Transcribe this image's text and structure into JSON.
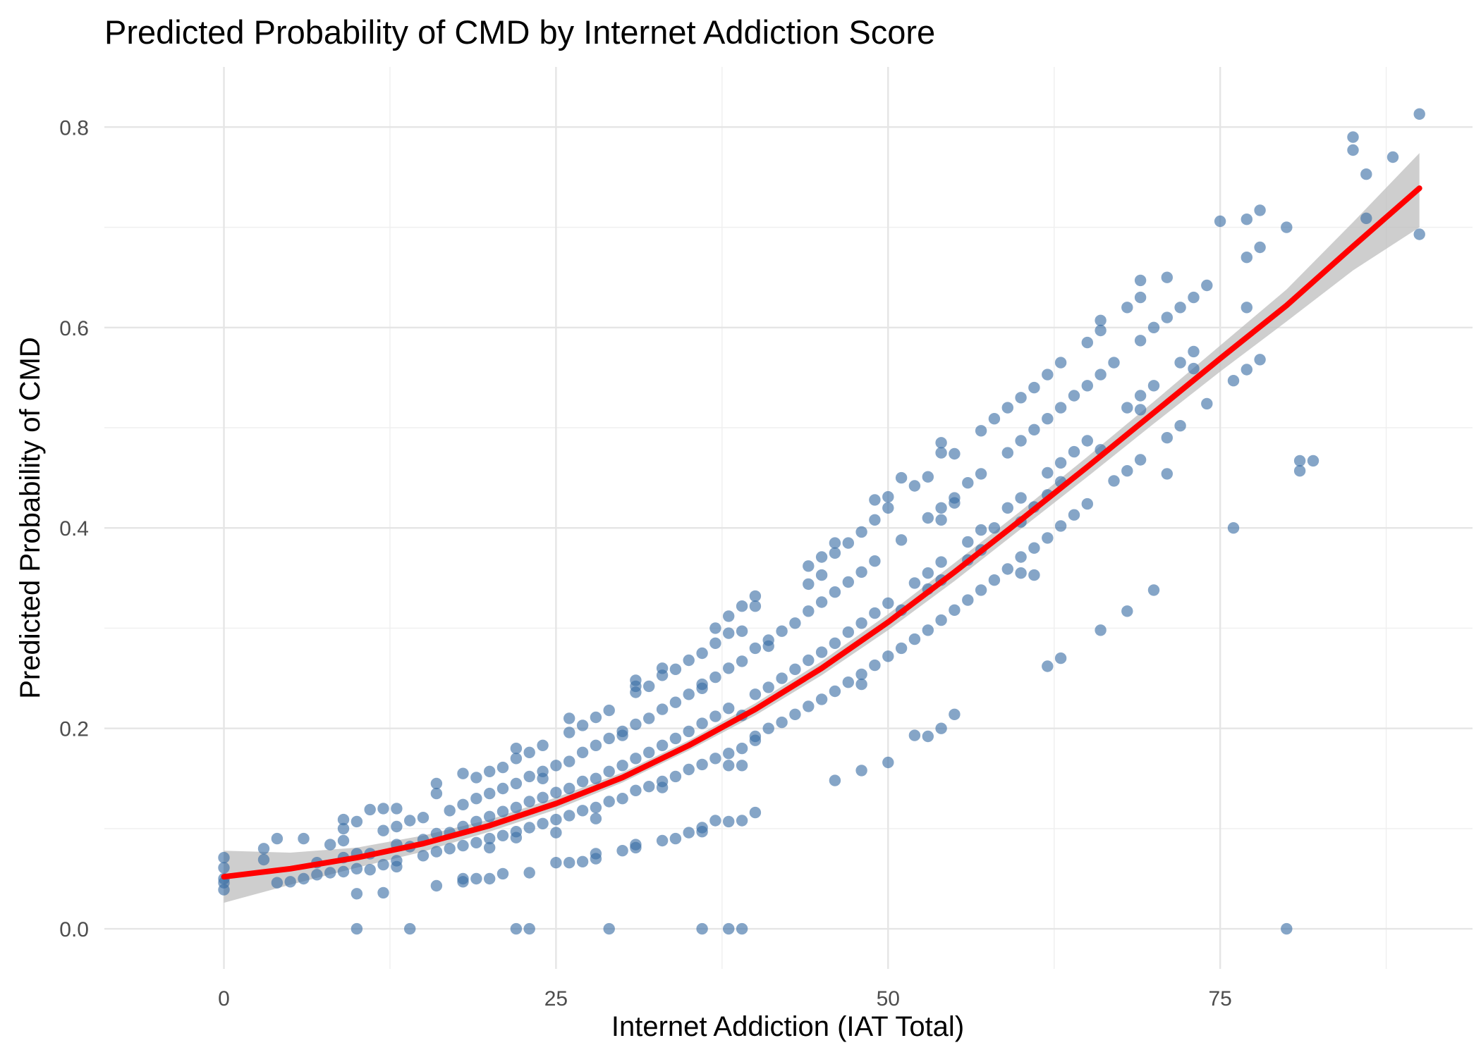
{
  "chart_data": {
    "type": "scatter",
    "title": "Predicted Probability of CMD by Internet Addiction Score",
    "xlabel": "Internet Addiction (IAT Total)",
    "ylabel": "Predicted Probability of CMD",
    "xlim": [
      -9,
      94
    ],
    "ylim": [
      -0.04,
      0.86
    ],
    "x_ticks": [
      0,
      25,
      50,
      75
    ],
    "x_tick_labels": [
      "0",
      "25",
      "50",
      "75"
    ],
    "y_ticks": [
      0.0,
      0.2,
      0.4,
      0.6,
      0.8
    ],
    "y_tick_labels": [
      "0.0",
      "0.2",
      "0.4",
      "0.6",
      "0.8"
    ],
    "grid": true,
    "legend": "none",
    "colors": {
      "points": "#3a6ea5",
      "fit_line": "#ff0000",
      "ribbon": "#bdbdbd",
      "grid": "#e5e5e5",
      "background": "#ffffff"
    },
    "points": [
      [
        0,
        0.071
      ],
      [
        0,
        0.061
      ],
      [
        0,
        0.05
      ],
      [
        0,
        0.046
      ],
      [
        0,
        0.039
      ],
      [
        3,
        0.08
      ],
      [
        3,
        0.069
      ],
      [
        4,
        0.09
      ],
      [
        4,
        0.046
      ],
      [
        5,
        0.047
      ],
      [
        6,
        0.09
      ],
      [
        6,
        0.05
      ],
      [
        7,
        0.066
      ],
      [
        7,
        0.054
      ],
      [
        8,
        0.084
      ],
      [
        8,
        0.056
      ],
      [
        9,
        0.109
      ],
      [
        9,
        0.1
      ],
      [
        9,
        0.088
      ],
      [
        9,
        0.071
      ],
      [
        9,
        0.057
      ],
      [
        10,
        0.107
      ],
      [
        10,
        0.075
      ],
      [
        10,
        0.06
      ],
      [
        10,
        0.035
      ],
      [
        10,
        0.0
      ],
      [
        11,
        0.119
      ],
      [
        11,
        0.075
      ],
      [
        11,
        0.059
      ],
      [
        12,
        0.12
      ],
      [
        12,
        0.098
      ],
      [
        12,
        0.064
      ],
      [
        12,
        0.036
      ],
      [
        13,
        0.12
      ],
      [
        13,
        0.102
      ],
      [
        13,
        0.084
      ],
      [
        13,
        0.068
      ],
      [
        13,
        0.062
      ],
      [
        14,
        0.108
      ],
      [
        14,
        0.082
      ],
      [
        14,
        0.0
      ],
      [
        15,
        0.111
      ],
      [
        15,
        0.089
      ],
      [
        15,
        0.073
      ],
      [
        16,
        0.145
      ],
      [
        16,
        0.135
      ],
      [
        16,
        0.095
      ],
      [
        16,
        0.077
      ],
      [
        16,
        0.043
      ],
      [
        17,
        0.118
      ],
      [
        17,
        0.096
      ],
      [
        17,
        0.08
      ],
      [
        18,
        0.155
      ],
      [
        18,
        0.124
      ],
      [
        18,
        0.102
      ],
      [
        18,
        0.083
      ],
      [
        18,
        0.05
      ],
      [
        18,
        0.047
      ],
      [
        19,
        0.151
      ],
      [
        19,
        0.13
      ],
      [
        19,
        0.107
      ],
      [
        19,
        0.086
      ],
      [
        19,
        0.05
      ],
      [
        20,
        0.157
      ],
      [
        20,
        0.135
      ],
      [
        20,
        0.112
      ],
      [
        20,
        0.09
      ],
      [
        20,
        0.05
      ],
      [
        20,
        0.081
      ],
      [
        21,
        0.161
      ],
      [
        21,
        0.14
      ],
      [
        21,
        0.117
      ],
      [
        21,
        0.093
      ],
      [
        21,
        0.055
      ],
      [
        22,
        0.17
      ],
      [
        22,
        0.18
      ],
      [
        22,
        0.145
      ],
      [
        22,
        0.121
      ],
      [
        22,
        0.097
      ],
      [
        22,
        0.091
      ],
      [
        22,
        0.0
      ],
      [
        23,
        0.176
      ],
      [
        23,
        0.152
      ],
      [
        23,
        0.127
      ],
      [
        23,
        0.101
      ],
      [
        23,
        0.056
      ],
      [
        23,
        0.0
      ],
      [
        24,
        0.183
      ],
      [
        24,
        0.157
      ],
      [
        24,
        0.15
      ],
      [
        24,
        0.131
      ],
      [
        24,
        0.105
      ],
      [
        25,
        0.163
      ],
      [
        25,
        0.136
      ],
      [
        25,
        0.109
      ],
      [
        25,
        0.096
      ],
      [
        25,
        0.066
      ],
      [
        26,
        0.21
      ],
      [
        26,
        0.196
      ],
      [
        26,
        0.167
      ],
      [
        26,
        0.14
      ],
      [
        26,
        0.113
      ],
      [
        26,
        0.066
      ],
      [
        27,
        0.203
      ],
      [
        27,
        0.176
      ],
      [
        27,
        0.147
      ],
      [
        27,
        0.118
      ],
      [
        27,
        0.067
      ],
      [
        28,
        0.211
      ],
      [
        28,
        0.183
      ],
      [
        28,
        0.15
      ],
      [
        28,
        0.121
      ],
      [
        28,
        0.11
      ],
      [
        28,
        0.075
      ],
      [
        28,
        0.07
      ],
      [
        29,
        0.218
      ],
      [
        29,
        0.19
      ],
      [
        29,
        0.157
      ],
      [
        29,
        0.127
      ],
      [
        29,
        0.0
      ],
      [
        30,
        0.197
      ],
      [
        30,
        0.193
      ],
      [
        30,
        0.163
      ],
      [
        30,
        0.13
      ],
      [
        30,
        0.078
      ],
      [
        31,
        0.248
      ],
      [
        31,
        0.242
      ],
      [
        31,
        0.236
      ],
      [
        31,
        0.204
      ],
      [
        31,
        0.17
      ],
      [
        31,
        0.138
      ],
      [
        31,
        0.084
      ],
      [
        31,
        0.081
      ],
      [
        32,
        0.242
      ],
      [
        32,
        0.21
      ],
      [
        32,
        0.176
      ],
      [
        32,
        0.142
      ],
      [
        33,
        0.26
      ],
      [
        33,
        0.253
      ],
      [
        33,
        0.219
      ],
      [
        33,
        0.183
      ],
      [
        33,
        0.147
      ],
      [
        33,
        0.141
      ],
      [
        33,
        0.088
      ],
      [
        34,
        0.259
      ],
      [
        34,
        0.226
      ],
      [
        34,
        0.19
      ],
      [
        34,
        0.152
      ],
      [
        34,
        0.09
      ],
      [
        35,
        0.268
      ],
      [
        35,
        0.234
      ],
      [
        35,
        0.197
      ],
      [
        35,
        0.159
      ],
      [
        35,
        0.096
      ],
      [
        36,
        0.275
      ],
      [
        36,
        0.244
      ],
      [
        36,
        0.24
      ],
      [
        36,
        0.205
      ],
      [
        36,
        0.164
      ],
      [
        36,
        0.101
      ],
      [
        36,
        0.097
      ],
      [
        36,
        0.0
      ],
      [
        37,
        0.3
      ],
      [
        37,
        0.285
      ],
      [
        37,
        0.251
      ],
      [
        37,
        0.212
      ],
      [
        37,
        0.17
      ],
      [
        37,
        0.108
      ],
      [
        38,
        0.312
      ],
      [
        38,
        0.295
      ],
      [
        38,
        0.26
      ],
      [
        38,
        0.22
      ],
      [
        38,
        0.175
      ],
      [
        38,
        0.163
      ],
      [
        38,
        0.107
      ],
      [
        38,
        0.0
      ],
      [
        39,
        0.322
      ],
      [
        39,
        0.297
      ],
      [
        39,
        0.267
      ],
      [
        39,
        0.213
      ],
      [
        39,
        0.18
      ],
      [
        39,
        0.163
      ],
      [
        39,
        0.108
      ],
      [
        39,
        0.0
      ],
      [
        40,
        0.332
      ],
      [
        40,
        0.322
      ],
      [
        40,
        0.28
      ],
      [
        40,
        0.234
      ],
      [
        40,
        0.192
      ],
      [
        40,
        0.188
      ],
      [
        40,
        0.116
      ],
      [
        41,
        0.282
      ],
      [
        41,
        0.288
      ],
      [
        41,
        0.241
      ],
      [
        41,
        0.2
      ],
      [
        42,
        0.297
      ],
      [
        42,
        0.25
      ],
      [
        42,
        0.206
      ],
      [
        43,
        0.305
      ],
      [
        43,
        0.259
      ],
      [
        43,
        0.214
      ],
      [
        44,
        0.362
      ],
      [
        44,
        0.344
      ],
      [
        44,
        0.317
      ],
      [
        44,
        0.268
      ],
      [
        44,
        0.222
      ],
      [
        45,
        0.371
      ],
      [
        45,
        0.353
      ],
      [
        45,
        0.326
      ],
      [
        45,
        0.276
      ],
      [
        45,
        0.229
      ],
      [
        46,
        0.385
      ],
      [
        46,
        0.375
      ],
      [
        46,
        0.336
      ],
      [
        46,
        0.285
      ],
      [
        46,
        0.237
      ],
      [
        46,
        0.148
      ],
      [
        47,
        0.385
      ],
      [
        47,
        0.346
      ],
      [
        47,
        0.296
      ],
      [
        47,
        0.246
      ],
      [
        48,
        0.396
      ],
      [
        48,
        0.356
      ],
      [
        48,
        0.305
      ],
      [
        48,
        0.254
      ],
      [
        48,
        0.244
      ],
      [
        48,
        0.158
      ],
      [
        49,
        0.428
      ],
      [
        49,
        0.408
      ],
      [
        49,
        0.367
      ],
      [
        49,
        0.315
      ],
      [
        49,
        0.263
      ],
      [
        50,
        0.431
      ],
      [
        50,
        0.42
      ],
      [
        50,
        0.325
      ],
      [
        50,
        0.272
      ],
      [
        50,
        0.166
      ],
      [
        51,
        0.45
      ],
      [
        51,
        0.388
      ],
      [
        51,
        0.318
      ],
      [
        51,
        0.28
      ],
      [
        52,
        0.442
      ],
      [
        52,
        0.345
      ],
      [
        52,
        0.289
      ],
      [
        52,
        0.193
      ],
      [
        53,
        0.451
      ],
      [
        53,
        0.41
      ],
      [
        53,
        0.355
      ],
      [
        53,
        0.339
      ],
      [
        53,
        0.298
      ],
      [
        53,
        0.192
      ],
      [
        54,
        0.485
      ],
      [
        54,
        0.475
      ],
      [
        54,
        0.42
      ],
      [
        54,
        0.408
      ],
      [
        54,
        0.366
      ],
      [
        54,
        0.348
      ],
      [
        54,
        0.308
      ],
      [
        54,
        0.2
      ],
      [
        55,
        0.474
      ],
      [
        55,
        0.43
      ],
      [
        55,
        0.425
      ],
      [
        55,
        0.318
      ],
      [
        55,
        0.214
      ],
      [
        56,
        0.445
      ],
      [
        56,
        0.386
      ],
      [
        56,
        0.368
      ],
      [
        56,
        0.328
      ],
      [
        57,
        0.497
      ],
      [
        57,
        0.454
      ],
      [
        57,
        0.398
      ],
      [
        57,
        0.378
      ],
      [
        57,
        0.338
      ],
      [
        58,
        0.509
      ],
      [
        58,
        0.4
      ],
      [
        58,
        0.348
      ],
      [
        59,
        0.52
      ],
      [
        59,
        0.475
      ],
      [
        59,
        0.42
      ],
      [
        59,
        0.359
      ],
      [
        60,
        0.53
      ],
      [
        60,
        0.487
      ],
      [
        60,
        0.43
      ],
      [
        60,
        0.406
      ],
      [
        60,
        0.371
      ],
      [
        60,
        0.355
      ],
      [
        61,
        0.54
      ],
      [
        61,
        0.498
      ],
      [
        61,
        0.421
      ],
      [
        61,
        0.38
      ],
      [
        61,
        0.353
      ],
      [
        62,
        0.553
      ],
      [
        62,
        0.509
      ],
      [
        62,
        0.455
      ],
      [
        62,
        0.433
      ],
      [
        62,
        0.39
      ],
      [
        62,
        0.262
      ],
      [
        63,
        0.565
      ],
      [
        63,
        0.52
      ],
      [
        63,
        0.465
      ],
      [
        63,
        0.446
      ],
      [
        63,
        0.402
      ],
      [
        63,
        0.27
      ],
      [
        64,
        0.532
      ],
      [
        64,
        0.476
      ],
      [
        64,
        0.413
      ],
      [
        65,
        0.585
      ],
      [
        65,
        0.542
      ],
      [
        65,
        0.487
      ],
      [
        65,
        0.424
      ],
      [
        66,
        0.607
      ],
      [
        66,
        0.597
      ],
      [
        66,
        0.553
      ],
      [
        66,
        0.478
      ],
      [
        66,
        0.298
      ],
      [
        67,
        0.565
      ],
      [
        67,
        0.447
      ],
      [
        68,
        0.62
      ],
      [
        68,
        0.52
      ],
      [
        68,
        0.457
      ],
      [
        68,
        0.317
      ],
      [
        69,
        0.647
      ],
      [
        69,
        0.63
      ],
      [
        69,
        0.587
      ],
      [
        69,
        0.532
      ],
      [
        69,
        0.518
      ],
      [
        69,
        0.468
      ],
      [
        70,
        0.6
      ],
      [
        70,
        0.542
      ],
      [
        70,
        0.338
      ],
      [
        71,
        0.65
      ],
      [
        71,
        0.61
      ],
      [
        71,
        0.49
      ],
      [
        71,
        0.454
      ],
      [
        72,
        0.62
      ],
      [
        72,
        0.565
      ],
      [
        72,
        0.502
      ],
      [
        73,
        0.63
      ],
      [
        73,
        0.576
      ],
      [
        73,
        0.559
      ],
      [
        74,
        0.642
      ],
      [
        74,
        0.524
      ],
      [
        75,
        0.706
      ],
      [
        76,
        0.547
      ],
      [
        76,
        0.4
      ],
      [
        77,
        0.708
      ],
      [
        77,
        0.67
      ],
      [
        77,
        0.62
      ],
      [
        77,
        0.558
      ],
      [
        78,
        0.717
      ],
      [
        78,
        0.68
      ],
      [
        78,
        0.568
      ],
      [
        80,
        0.7
      ],
      [
        80,
        0.0
      ],
      [
        81,
        0.467
      ],
      [
        81,
        0.457
      ],
      [
        82,
        0.467
      ],
      [
        85,
        0.79
      ],
      [
        85,
        0.777
      ],
      [
        86,
        0.753
      ],
      [
        86,
        0.709
      ],
      [
        88,
        0.77
      ],
      [
        90,
        0.813
      ],
      [
        90,
        0.693
      ]
    ],
    "fit": {
      "x": [
        0,
        5,
        10,
        15,
        20,
        25,
        30,
        35,
        40,
        45,
        50,
        55,
        60,
        65,
        70,
        75,
        80,
        85,
        90
      ],
      "y": [
        0.052,
        0.06,
        0.071,
        0.085,
        0.103,
        0.125,
        0.151,
        0.183,
        0.219,
        0.26,
        0.306,
        0.356,
        0.408,
        0.461,
        0.515,
        0.569,
        0.622,
        0.681,
        0.739
      ],
      "lower": [
        0.026,
        0.044,
        0.061,
        0.077,
        0.097,
        0.119,
        0.146,
        0.178,
        0.213,
        0.253,
        0.298,
        0.347,
        0.399,
        0.451,
        0.504,
        0.556,
        0.606,
        0.657,
        0.7
      ],
      "upper": [
        0.078,
        0.076,
        0.081,
        0.093,
        0.109,
        0.131,
        0.156,
        0.188,
        0.225,
        0.267,
        0.314,
        0.365,
        0.417,
        0.471,
        0.526,
        0.582,
        0.638,
        0.705,
        0.774
      ]
    }
  }
}
